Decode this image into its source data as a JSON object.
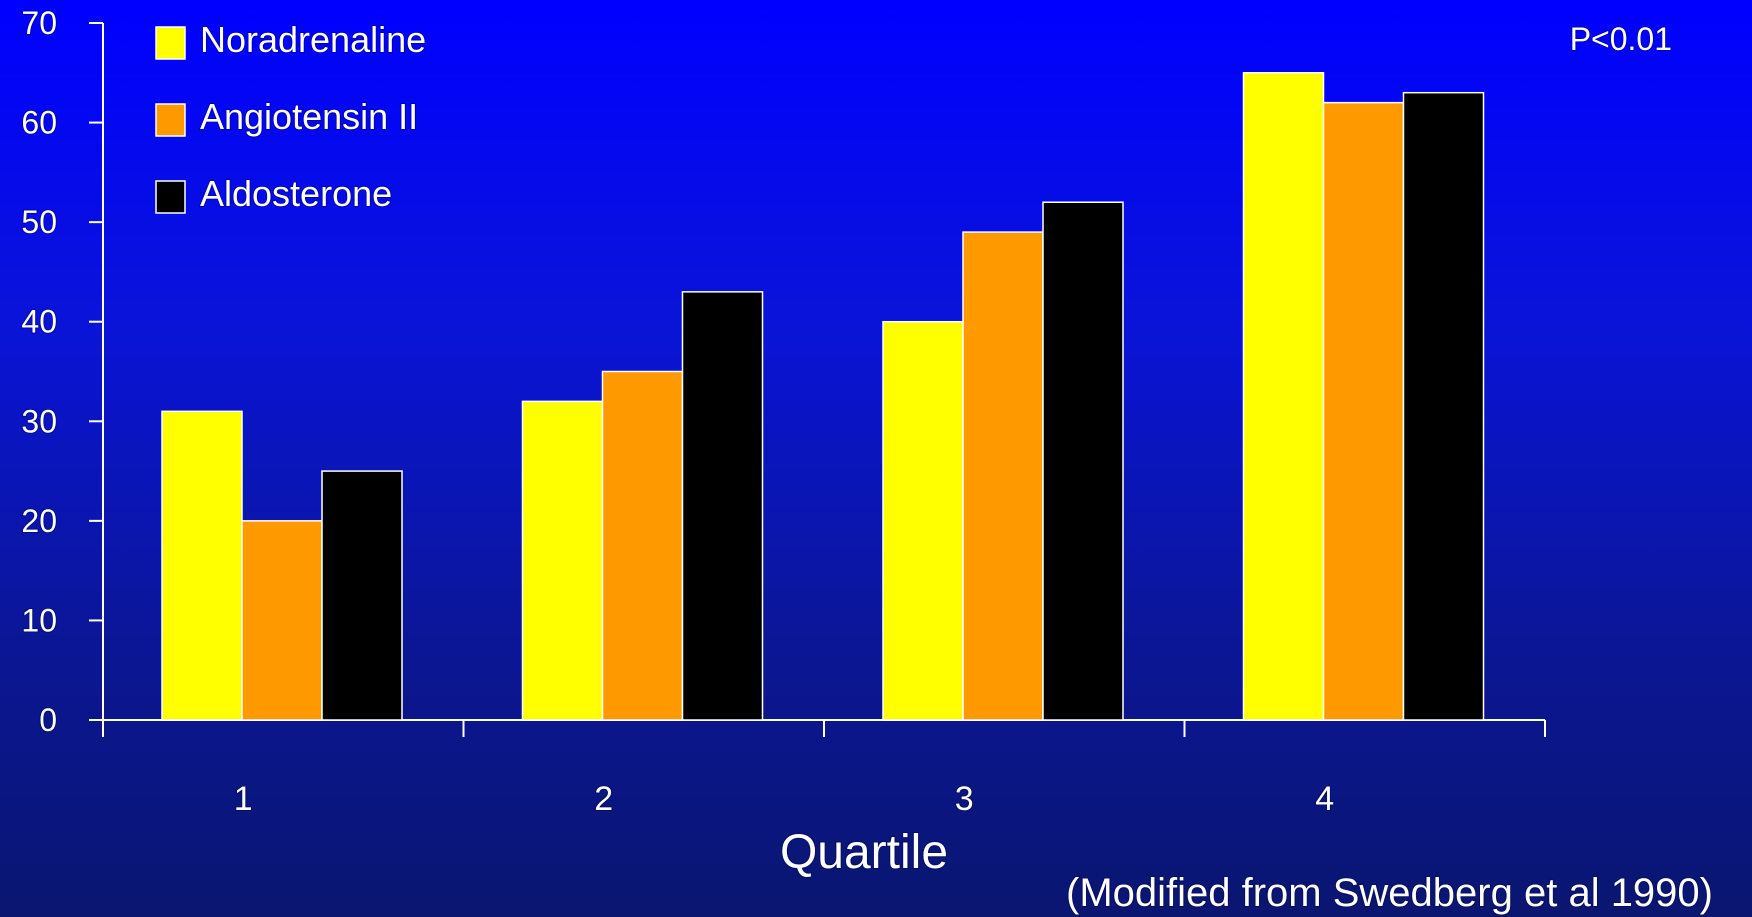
{
  "chart_data": {
    "type": "bar",
    "categories": [
      "1",
      "2",
      "3",
      "4"
    ],
    "series": [
      {
        "name": "Noradrenaline",
        "color": "#ffff00",
        "values": [
          31,
          32,
          40,
          65
        ]
      },
      {
        "name": "Angiotensin II",
        "color": "#ff9900",
        "values": [
          20,
          35,
          49,
          62
        ]
      },
      {
        "name": "Aldosterone",
        "color": "#000000",
        "values": [
          25,
          43,
          52,
          63
        ]
      }
    ],
    "xlabel": "Quartile",
    "ylabel": "",
    "ylim": [
      0,
      70
    ],
    "yticks": [
      "0",
      "10",
      "20",
      "30",
      "40",
      "50",
      "60",
      "70"
    ],
    "annotation": "P<0.01",
    "source_note": "(Modified from Swedberg et al 1990)",
    "grid": false,
    "legend_position": "top-left"
  }
}
